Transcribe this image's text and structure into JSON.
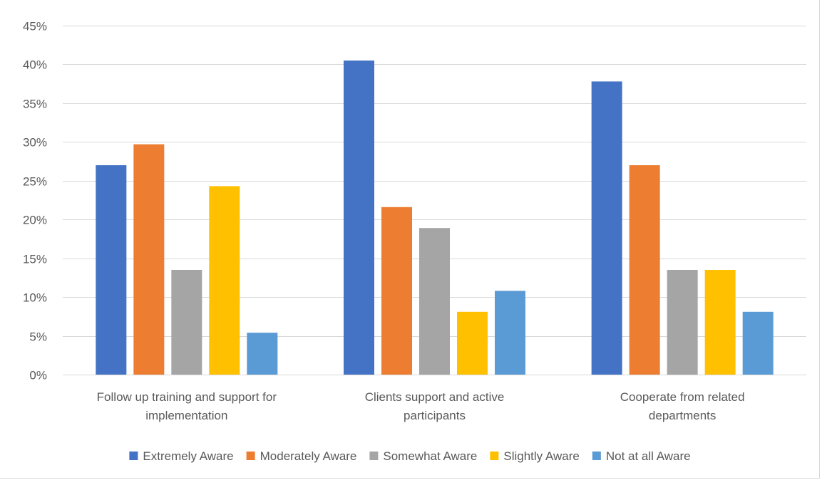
{
  "chart_data": {
    "type": "bar",
    "title": "",
    "xlabel": "",
    "ylabel": "",
    "ylim": [
      0,
      45
    ],
    "ytick_step": 5,
    "ytick_suffix": "%",
    "grid": true,
    "legend_position": "bottom",
    "categories": [
      [
        "Follow up training and support for",
        "implementation"
      ],
      [
        "Clients support and active",
        "participants"
      ],
      [
        "Cooperate from related",
        "departments"
      ]
    ],
    "series": [
      {
        "name": "Extremely Aware",
        "color": "#4472c4",
        "values": [
          27.0,
          40.5,
          37.8
        ]
      },
      {
        "name": "Moderately Aware",
        "color": "#ed7d31",
        "values": [
          29.7,
          21.6,
          27.0
        ]
      },
      {
        "name": "Somewhat Aware",
        "color": "#a5a5a5",
        "values": [
          13.5,
          18.9,
          13.5
        ]
      },
      {
        "name": "Slightly Aware",
        "color": "#ffc000",
        "values": [
          24.3,
          8.1,
          13.5
        ]
      },
      {
        "name": "Not at all Aware",
        "color": "#5b9bd5",
        "values": [
          5.4,
          10.8,
          8.1
        ]
      }
    ]
  }
}
